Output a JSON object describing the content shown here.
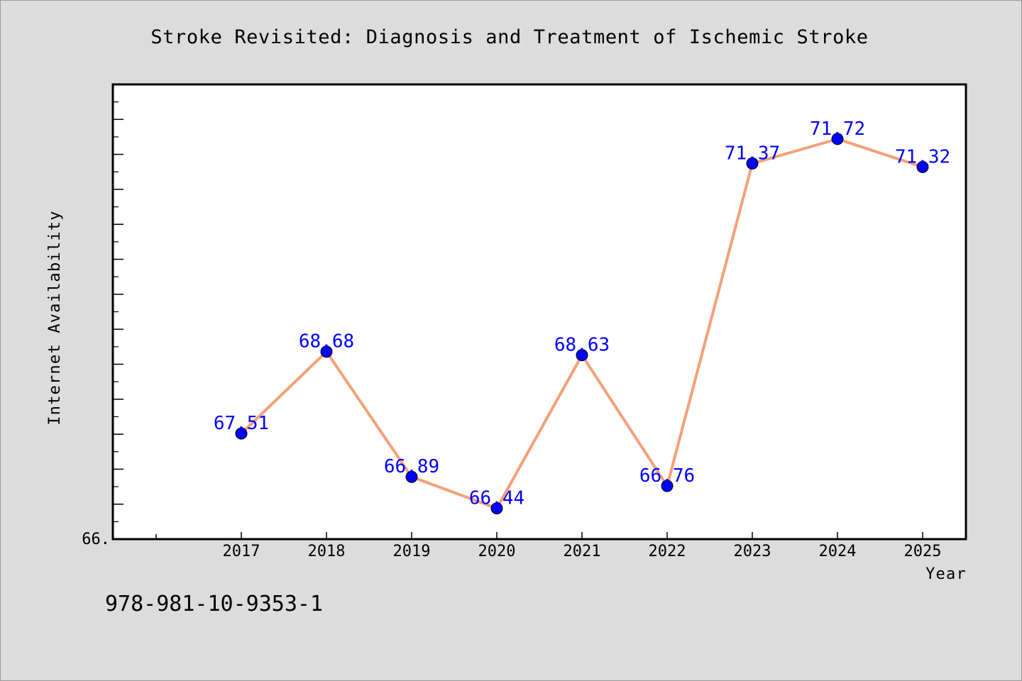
{
  "chart_data": {
    "type": "line",
    "title": "Stroke Revisited: Diagnosis and Treatment of Ischemic Stroke",
    "xlabel": "Year",
    "ylabel": "Internet Availability",
    "categories": [
      "2017",
      "2018",
      "2019",
      "2020",
      "2021",
      "2022",
      "2023",
      "2024",
      "2025"
    ],
    "series": [
      {
        "values": [
          67.51,
          68.68,
          66.89,
          66.44,
          68.63,
          66.76,
          71.37,
          71.72,
          71.32
        ],
        "labels": [
          "67.51",
          "68.68",
          "66.89",
          "66.44",
          "68.63",
          "66.76",
          "71.37",
          "71.72",
          "71.32"
        ]
      }
    ],
    "ylim": [
      66.0,
      72.5
    ],
    "y_tick_labels": [
      "66."
    ],
    "line_color": "#f4a07a",
    "marker_color": "#0000ff",
    "label_color": "#0000ff",
    "legend": "none",
    "grid": false
  },
  "footer": {
    "isbn": "978-981-10-9353-1"
  }
}
